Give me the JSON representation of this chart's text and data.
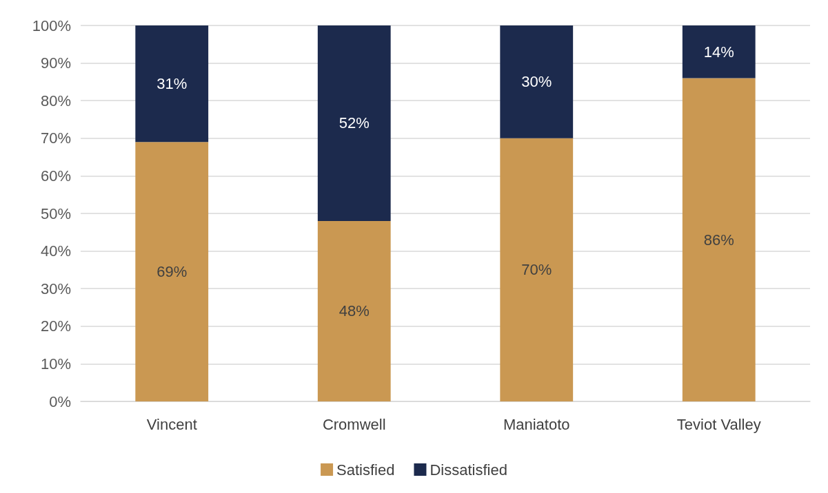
{
  "chart_data": {
    "type": "bar",
    "stacked": true,
    "categories": [
      "Vincent",
      "Cromwell",
      "Maniatoto",
      "Teviot Valley"
    ],
    "series": [
      {
        "name": "Satisfied",
        "color": "#ca9852",
        "values": [
          69,
          48,
          70,
          86
        ],
        "value_labels": [
          "69%",
          "48%",
          "70%",
          "86%"
        ]
      },
      {
        "name": "Dissatisfied",
        "color": "#1c2a4d",
        "values": [
          31,
          52,
          30,
          14
        ],
        "value_labels": [
          "31%",
          "52%",
          "30%",
          "14%"
        ]
      }
    ],
    "ylim": [
      0,
      100
    ],
    "yticks": [
      {
        "value": 0,
        "label": "0%"
      },
      {
        "value": 10,
        "label": "10%"
      },
      {
        "value": 20,
        "label": "20%"
      },
      {
        "value": 30,
        "label": "30%"
      },
      {
        "value": 40,
        "label": "40%"
      },
      {
        "value": 50,
        "label": "50%"
      },
      {
        "value": 60,
        "label": "60%"
      },
      {
        "value": 70,
        "label": "70%"
      },
      {
        "value": 80,
        "label": "80%"
      },
      {
        "value": 90,
        "label": "90%"
      },
      {
        "value": 100,
        "label": "100%"
      }
    ],
    "grid": "y",
    "legend": "bottom"
  }
}
